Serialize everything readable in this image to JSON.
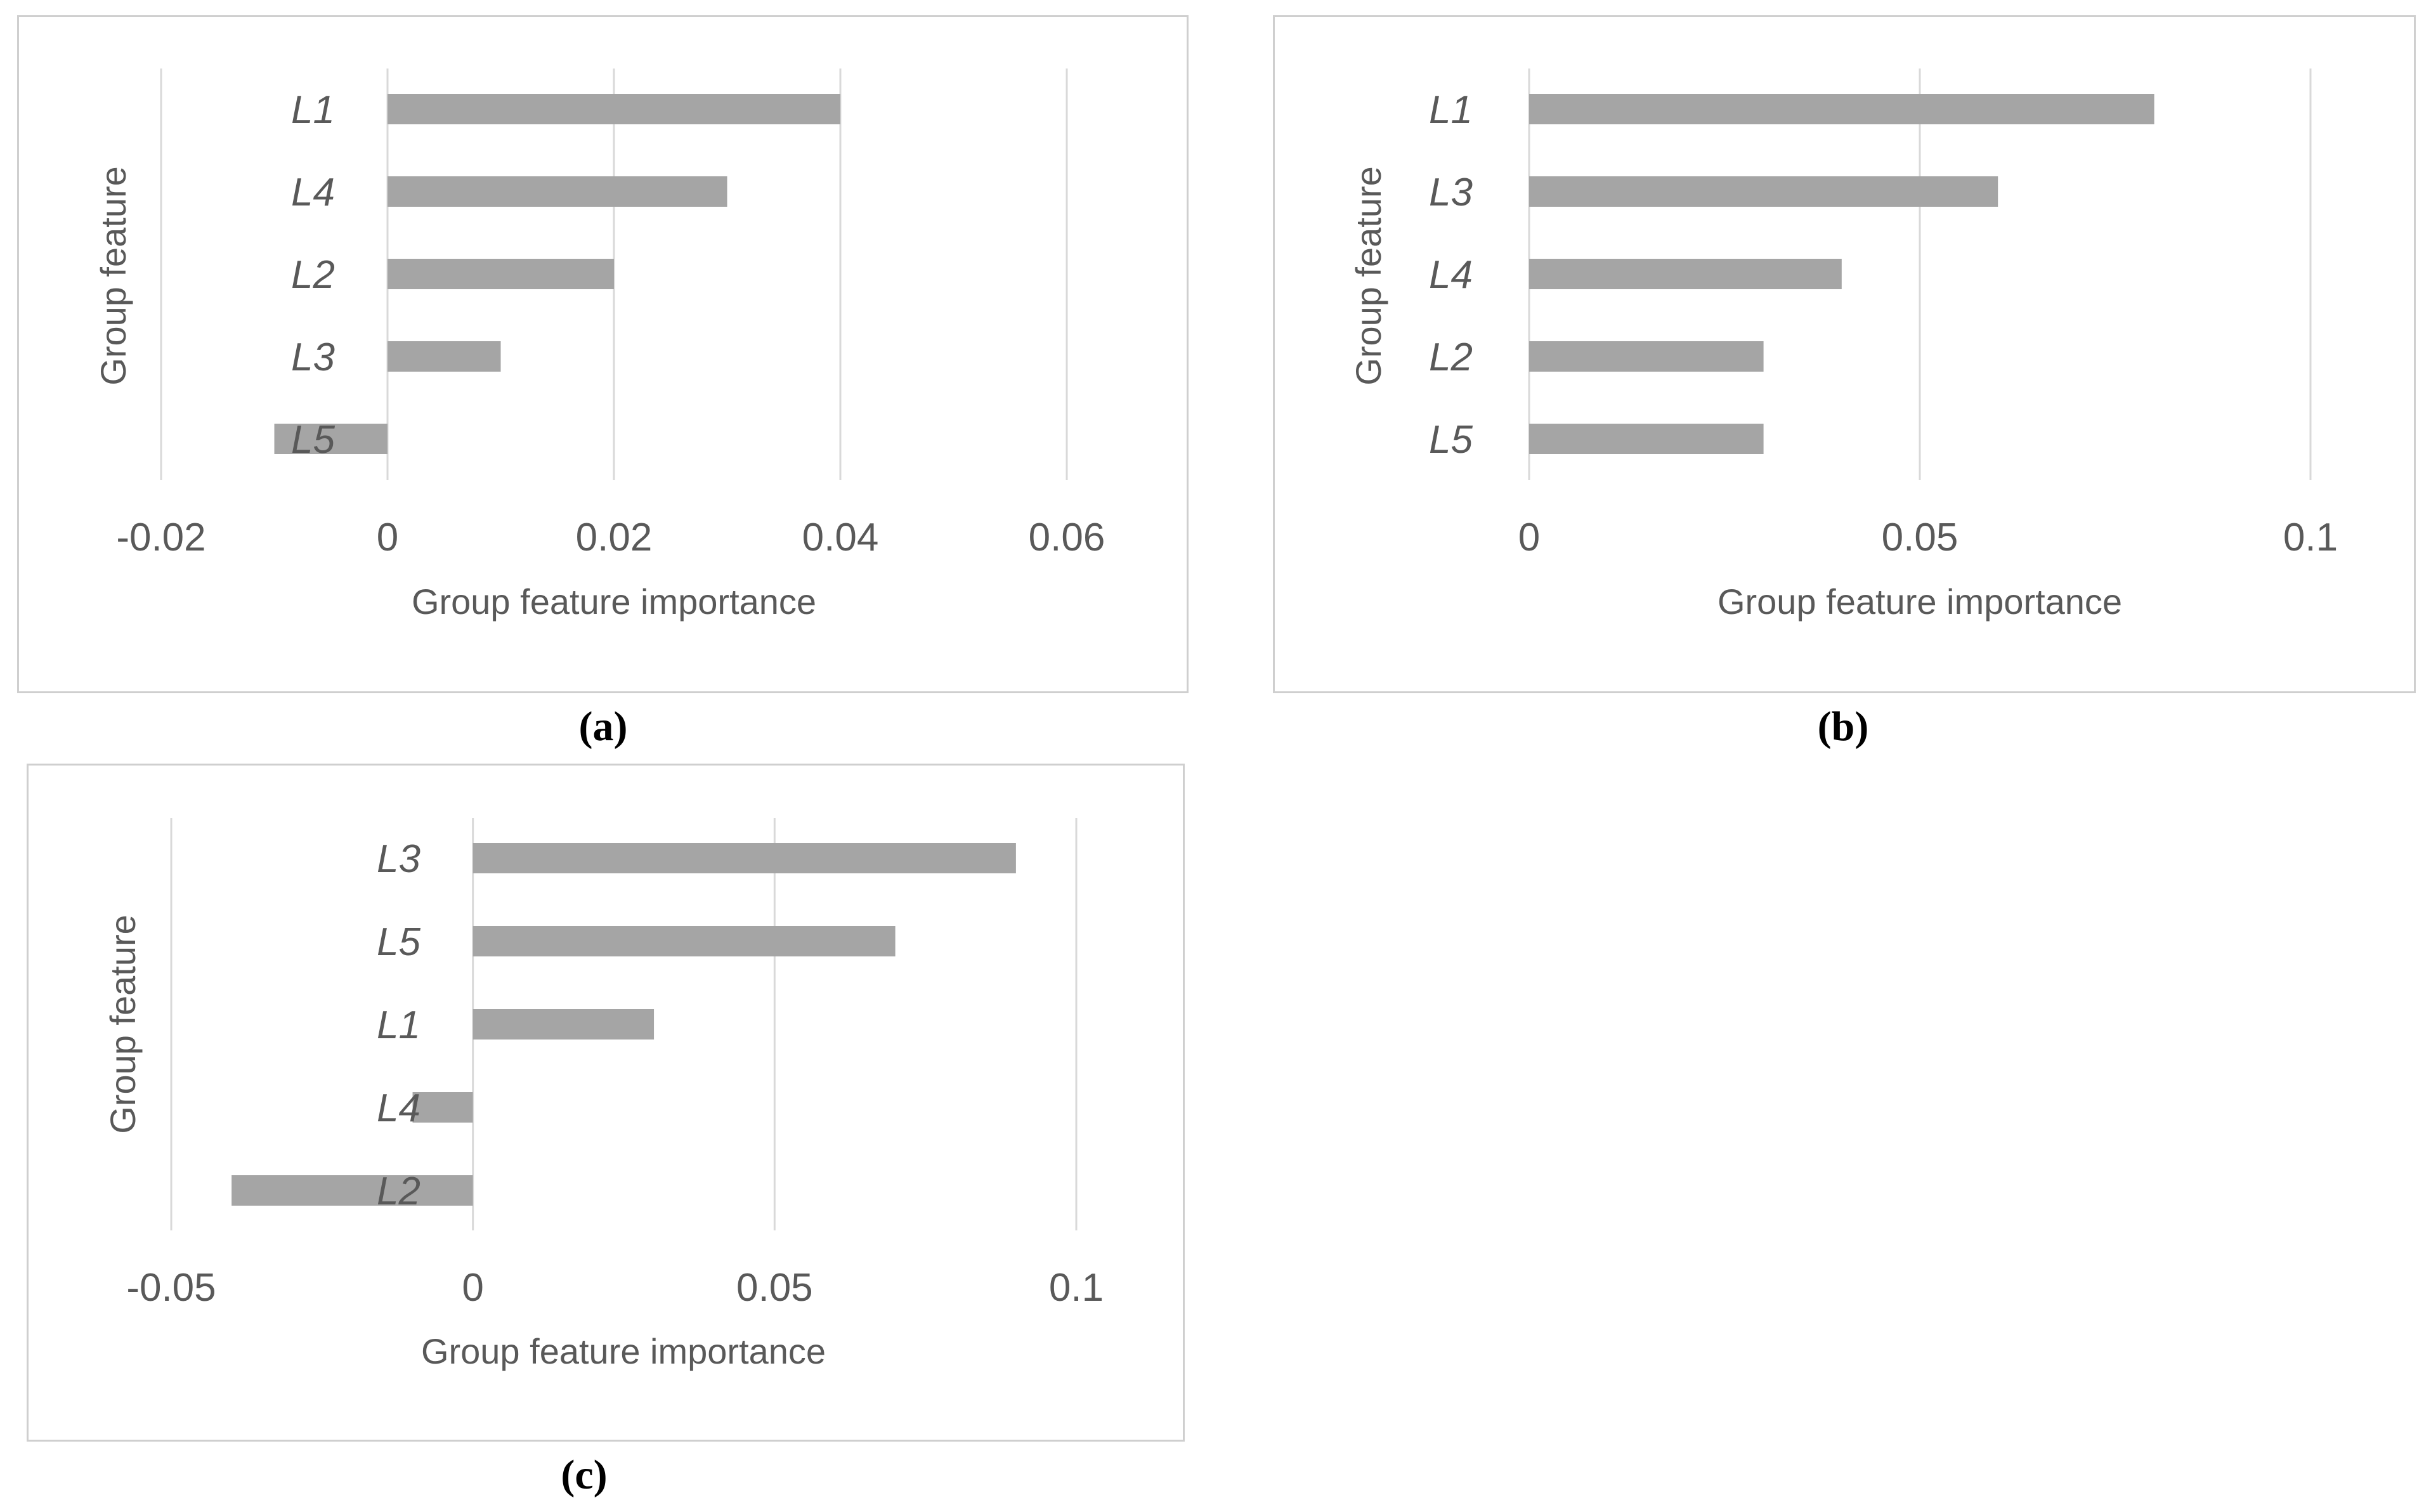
{
  "captions": {
    "a": "(a)",
    "b": "(b)",
    "c": "(c)"
  },
  "bar_color": "#a5a5a5",
  "grid_color": "#d9d9d9",
  "chart_data": [
    {
      "id": "a",
      "type": "bar",
      "orientation": "horizontal",
      "title": "",
      "categories": [
        "L1",
        "L4",
        "L2",
        "L3",
        "L5"
      ],
      "values": [
        0.04,
        0.03,
        0.02,
        0.01,
        -0.01
      ],
      "xlabel": "Group feature importance",
      "ylabel": "Group feature",
      "xlim": [
        -0.02,
        0.06
      ],
      "xticks": [
        -0.02,
        0,
        0.02,
        0.04,
        0.06
      ],
      "xtick_labels": [
        "-0.02",
        "0",
        "0.02",
        "0.04",
        "0.06"
      ],
      "grid": true
    },
    {
      "id": "b",
      "type": "bar",
      "orientation": "horizontal",
      "title": "",
      "categories": [
        "L1",
        "L3",
        "L4",
        "L2",
        "L5"
      ],
      "values": [
        0.08,
        0.06,
        0.04,
        0.03,
        0.03
      ],
      "xlabel": "Group feature importance",
      "ylabel": "Group feature",
      "xlim": [
        0,
        0.1
      ],
      "xticks": [
        0,
        0.05,
        0.1
      ],
      "xtick_labels": [
        "0",
        "0.05",
        "0.1"
      ],
      "grid": true
    },
    {
      "id": "c",
      "type": "bar",
      "orientation": "horizontal",
      "title": "",
      "categories": [
        "L3",
        "L5",
        "L1",
        "L4",
        "L2"
      ],
      "values": [
        0.09,
        0.07,
        0.03,
        -0.01,
        -0.04
      ],
      "xlabel": "Group feature importance",
      "ylabel": "Group feature",
      "xlim": [
        -0.05,
        0.1
      ],
      "xticks": [
        -0.05,
        0,
        0.05,
        0.1
      ],
      "xtick_labels": [
        "-0.05",
        "0",
        "0.05",
        "0.1"
      ],
      "grid": true
    }
  ]
}
